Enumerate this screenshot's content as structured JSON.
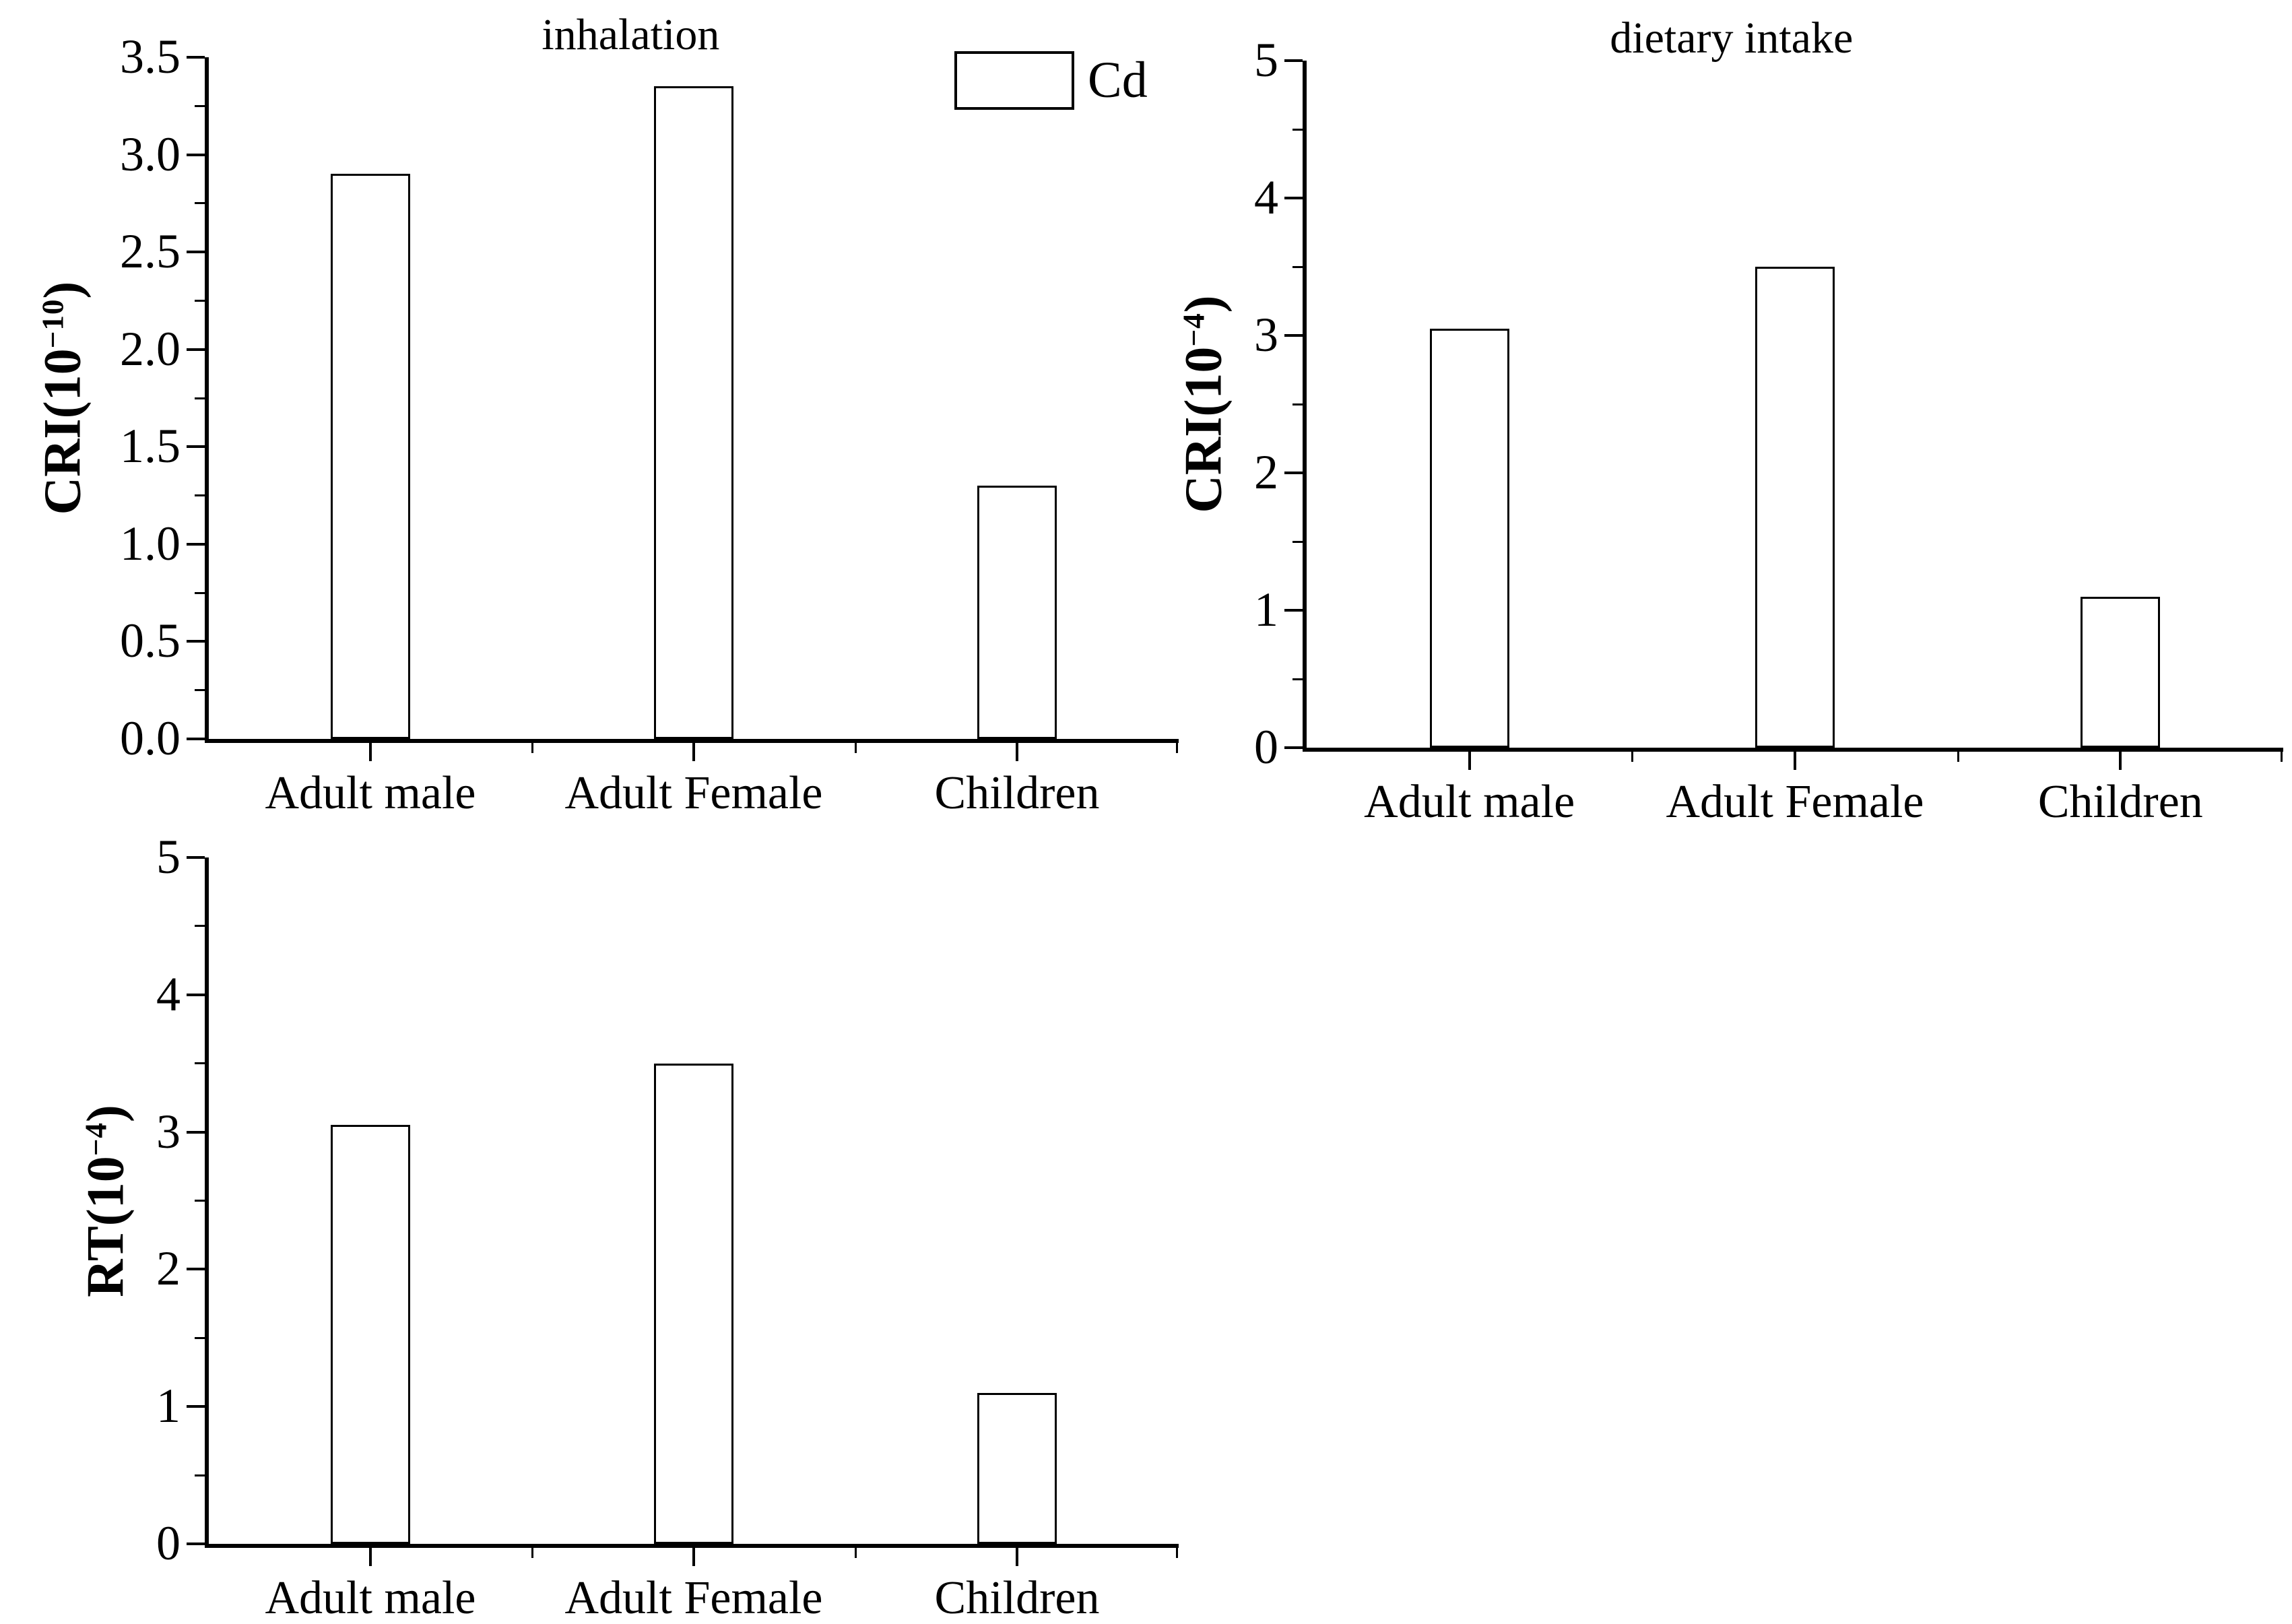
{
  "colors": {
    "ink": "#000000",
    "paper": "#ffffff"
  },
  "legend": {
    "label": "Cd",
    "swatch_fill": "#ffffff",
    "swatch_border": "#000000"
  },
  "chart_data": [
    {
      "type": "bar",
      "title": "inhalation",
      "ylabel_prefix": "CRI(10",
      "ylabel_exponent": "−10",
      "ylabel_suffix": ")",
      "categories": [
        "Adult male",
        "Adult Female",
        "Children"
      ],
      "values": [
        2.9,
        3.35,
        1.3
      ],
      "ylim": [
        0,
        3.5
      ],
      "ytick_labels": [
        "0.0",
        "0.5",
        "1.0",
        "1.5",
        "2.0",
        "2.5",
        "3.0",
        "3.5"
      ],
      "minor_ticks_between_majors": true,
      "grid": false,
      "bar_fill": "#ffffff",
      "bar_edge": "#000000",
      "legend_entries": [
        {
          "label": "Cd",
          "swatch": "open-rectangle"
        }
      ],
      "legend_position": "top-right-inside"
    },
    {
      "type": "bar",
      "title": "dietary intake",
      "ylabel_prefix": "CRI(10",
      "ylabel_exponent": "−4",
      "ylabel_suffix": ")",
      "categories": [
        "Adult male",
        "Adult Female",
        "Children"
      ],
      "values": [
        3.05,
        3.5,
        1.1
      ],
      "ylim": [
        0,
        5
      ],
      "ytick_labels": [
        "0",
        "1",
        "2",
        "3",
        "4",
        "5"
      ],
      "minor_ticks_between_majors": true,
      "grid": false,
      "bar_fill": "#ffffff",
      "bar_edge": "#000000"
    },
    {
      "type": "bar",
      "title": "",
      "ylabel_prefix": "RT(10",
      "ylabel_exponent": "−4",
      "ylabel_suffix": ")",
      "categories": [
        "Adult male",
        "Adult Female",
        "Children"
      ],
      "values": [
        3.05,
        3.5,
        1.1
      ],
      "ylim": [
        0,
        5
      ],
      "ytick_labels": [
        "0",
        "1",
        "2",
        "3",
        "4",
        "5"
      ],
      "minor_ticks_between_majors": true,
      "grid": false,
      "bar_fill": "#ffffff",
      "bar_edge": "#000000"
    }
  ]
}
